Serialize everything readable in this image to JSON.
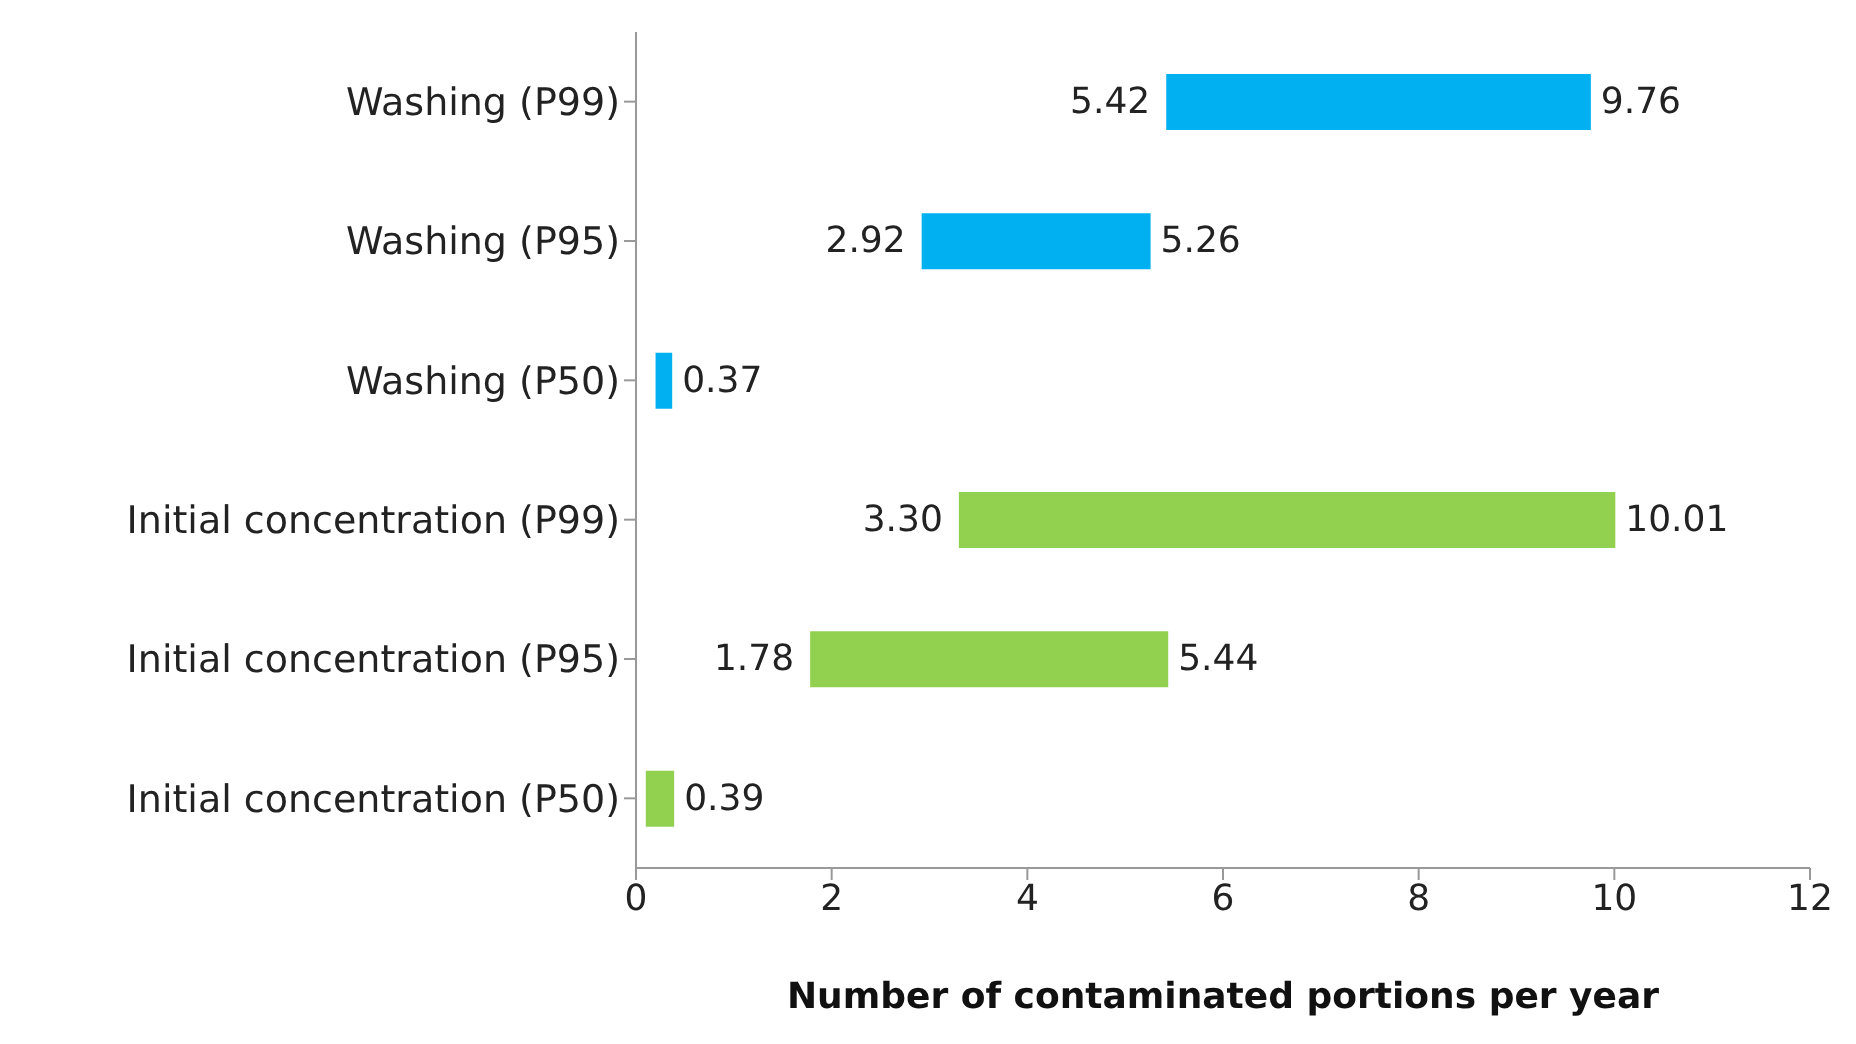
{
  "chart_data": {
    "type": "bar",
    "orientation": "horizontal",
    "categories": [
      "Washing (P99)",
      "Washing (P95)",
      "Washing (P50)",
      "Initial concentration (P99)",
      "Initial concentration (P95)",
      "Initial concentration (P50)"
    ],
    "base": [
      5.42,
      2.92,
      0.2,
      3.3,
      1.78,
      0.1
    ],
    "values": [
      4.34,
      2.34,
      0.17,
      6.71,
      3.66,
      0.29
    ],
    "value_labels": [
      "9.76",
      "5.26",
      "0.37",
      "10.01",
      "5.44",
      "0.39"
    ],
    "colors": [
      "#00b0f0",
      "#00b0f0",
      "#00b0f0",
      "#92d050",
      "#92d050",
      "#92d050"
    ],
    "xlabel": "Number of contaminated portions per year",
    "xlim": [
      0,
      12
    ],
    "xticks": [
      0,
      2,
      4,
      6,
      8,
      10,
      12
    ],
    "annotations": [
      {
        "text": "5.42",
        "x": 5.42,
        "y": "Washing (P99)"
      },
      {
        "text": "2.92",
        "x": 2.92,
        "y": "Washing (P95)"
      },
      {
        "text": "3.30",
        "x": 3.3,
        "y": "Initial concentration (P99)"
      },
      {
        "text": "1.78",
        "x": 1.78,
        "y": "Initial concentration (P95)"
      }
    ],
    "grid": false,
    "legend": false
  }
}
